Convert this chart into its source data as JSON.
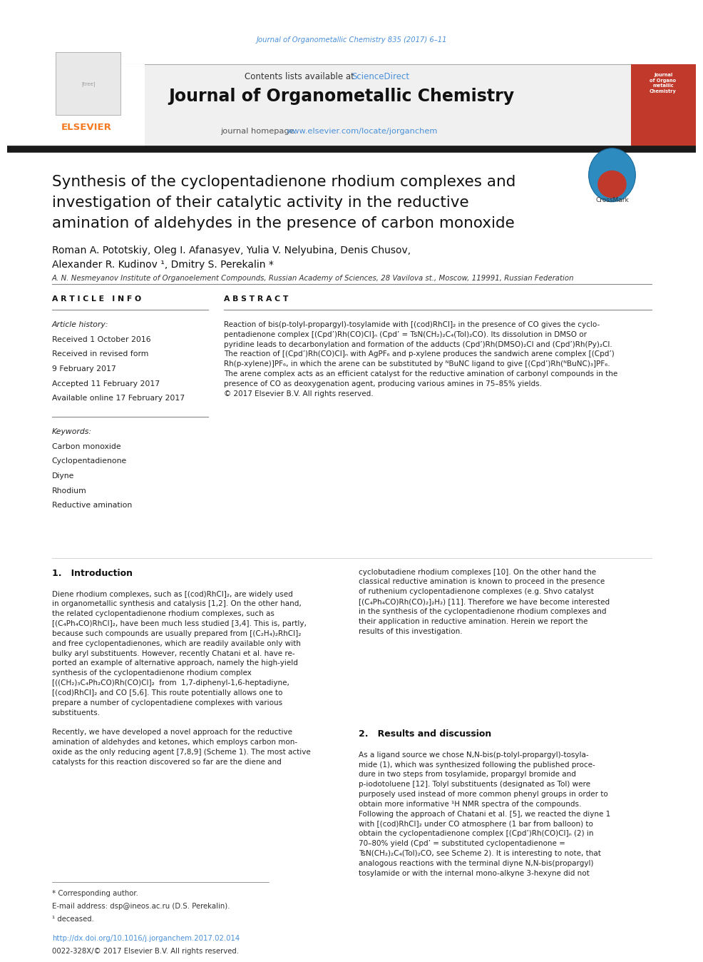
{
  "bg_color": "#ffffff",
  "page_width": 9.92,
  "page_height": 13.23,
  "top_link_text": "Journal of Organometallic Chemistry 835 (2017) 6–11",
  "top_link_color": "#4a90d9",
  "header_bg_color": "#f0f0f0",
  "header_title": "Journal of Organometallic Chemistry",
  "header_contents_text": "Contents lists available at ",
  "header_sciencedirect_text": "ScienceDirect",
  "header_link_color": "#4a90d9",
  "header_homepage_text": "journal homepage: ",
  "header_url_text": "www.elsevier.com/locate/jorganchem",
  "thick_bar_color": "#1a1a1a",
  "article_title": "Synthesis of the cyclopentadienone rhodium complexes and\ninvestigation of their catalytic activity in the reductive\namination of aldehydes in the presence of carbon monoxide",
  "authors": "Roman A. Pototskiy, Oleg I. Afanasyev, Yulia V. Nelyubina, Denis Chusov,\nAlexander R. Kudinov ¹, Dmitry S. Perekalin *",
  "affiliation": "A. N. Nesmeyanov Institute of Organoelement Compounds, Russian Academy of Sciences, 28 Vavilova st., Moscow, 119991, Russian Federation",
  "article_info_header": "A R T I C L E   I N F O",
  "abstract_header": "A B S T R A C T",
  "article_history_label": "Article history:",
  "received_1": "Received 1 October 2016",
  "received_revised": "Received in revised form",
  "received_revised_date": "9 February 2017",
  "accepted": "Accepted 11 February 2017",
  "available": "Available online 17 February 2017",
  "keywords_label": "Keywords:",
  "keywords": [
    "Carbon monoxide",
    "Cyclopentadienone",
    "Diyne",
    "Rhodium",
    "Reductive amination"
  ],
  "abstract_text": "Reaction of bis(p-tolyl-propargyl)-tosylamide with [(cod)RhCl]₂ in the presence of CO gives the cyclo-\npentadienone complex [(Cpd’)Rh(CO)Cl]ₙ (Cpd’ = TsN(CH₂)₂C₄(Tol)₂CO). Its dissolution in DMSO or\npyridine leads to decarbonylation and formation of the adducts (Cpd’)Rh(DMSO)₂Cl and (Cpd’)Rh(Py)₂Cl.\nThe reaction of [(Cpd’)Rh(CO)Cl]ₙ with AgPF₆ and p-xylene produces the sandwich arene complex [(Cpd’)\nRh(p-xylene)]PF₆, in which the arene can be substituted by ᴺBuNC ligand to give [(Cpd’)Rh(ᴺBuNC)₃]PF₆.\nThe arene complex acts as an efficient catalyst for the reductive amination of carbonyl compounds in the\npresence of CO as deoxygenation agent, producing various amines in 75–85% yields.\n© 2017 Elsevier B.V. All rights reserved.",
  "intro_header": "1.   Introduction",
  "intro_text_left": "Diene rhodium complexes, such as [(cod)RhCl]₂, are widely used\nin organometallic synthesis and catalysis [1,2]. On the other hand,\nthe related cyclopentadienone rhodium complexes, such as\n[(C₄Ph₄CO)RhCl]₂, have been much less studied [3,4]. This is, partly,\nbecause such compounds are usually prepared from [(C₂H₄)₂RhCl]₂\nand free cyclopentadienones, which are readily available only with\nbulky aryl substituents. However, recently Chatani et al. have re-\nported an example of alternative approach, namely the high-yield\nsynthesis of the cyclopentadienone rhodium complex\n[((CH₂)₃C₄Ph₂CO)Rh(CO)Cl]₂  from  1,7-diphenyl-1,6-heptadiyne,\n[(cod)RhCl]₂ and CO [5,6]. This route potentially allows one to\nprepare a number of cyclopentadiene complexes with various\nsubstituents.\n\nRecently, we have developed a novel approach for the reductive\namination of aldehydes and ketones, which employs carbon mon-\noxide as the only reducing agent [7,8,9] (Scheme 1). The most active\ncatalysts for this reaction discovered so far are the diene and",
  "intro_text_right": "cyclobutadiene rhodium complexes [10]. On the other hand the\nclassical reductive amination is known to proceed in the presence\nof ruthenium cyclopentadienone complexes (e.g. Shvo catalyst\n[(C₄Ph₄CO)Rh(CO)₂]₂H₂) [11]. Therefore we have become interested\nin the synthesis of the cyclopentadienone rhodium complexes and\ntheir application in reductive amination. Herein we report the\nresults of this investigation.",
  "results_header": "2.   Results and discussion",
  "results_text": "As a ligand source we chose N,N-bis(p-tolyl-propargyl)-tosyla-\nmide (1), which was synthesized following the published proce-\ndure in two steps from tosylamide, propargyl bromide and\np-iodotoluene [12]. Tolyl substituents (designated as Tol) were\npurposely used instead of more common phenyl groups in order to\nobtain more informative ¹H NMR spectra of the compounds.\nFollowing the approach of Chatani et al. [5], we reacted the diyne 1\nwith [(cod)RhCl]₂ under CO atmosphere (1 bar from balloon) to\nobtain the cyclopentadienone complex [(Cpd’)Rh(CO)Cl]ₙ (2) in\n70–80% yield (Cpd’ = substituted cyclopentadienone =\nTsN(CH₂)₂C₄(Tol)₂CO, see Scheme 2). It is interesting to note, that\nanalogous reactions with the terminal diyne N,N-bis(propargyl)\ntosylamide or with the internal mono-alkyne 3-hexyne did not",
  "footer_note": "* Corresponding author.",
  "footer_email": "E-mail address: dsp@ineos.ac.ru (D.S. Perekalin).",
  "footer_superscript": "¹ deceased.",
  "footer_doi": "http://dx.doi.org/10.1016/j.jorganchem.2017.02.014",
  "footer_issn": "0022-328X/© 2017 Elsevier B.V. All rights reserved."
}
